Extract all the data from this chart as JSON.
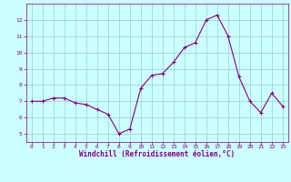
{
  "x": [
    0,
    1,
    2,
    3,
    4,
    5,
    6,
    7,
    8,
    9,
    10,
    11,
    12,
    13,
    14,
    15,
    16,
    17,
    18,
    19,
    20,
    21,
    22,
    23
  ],
  "y": [
    7.0,
    7.0,
    7.2,
    7.2,
    6.9,
    6.8,
    6.5,
    6.2,
    5.0,
    5.3,
    7.8,
    8.6,
    8.7,
    9.4,
    10.3,
    10.6,
    12.0,
    12.3,
    11.0,
    8.5,
    7.0,
    6.3,
    7.5,
    6.7
  ],
  "line_color": "#800080",
  "marker": "+",
  "marker_color": "#800080",
  "marker_size": 3,
  "bg_color": "#ccffff",
  "grid_color": "#99cccc",
  "xlabel": "Windchill (Refroidissement éolien,°C)",
  "xlabel_color": "#800080",
  "tick_color": "#800080",
  "ylim": [
    4.5,
    13.0
  ],
  "xlim": [
    -0.5,
    23.5
  ],
  "yticks": [
    5,
    6,
    7,
    8,
    9,
    10,
    11,
    12
  ],
  "xticks": [
    0,
    1,
    2,
    3,
    4,
    5,
    6,
    7,
    8,
    9,
    10,
    11,
    12,
    13,
    14,
    15,
    16,
    17,
    18,
    19,
    20,
    21,
    22,
    23
  ]
}
